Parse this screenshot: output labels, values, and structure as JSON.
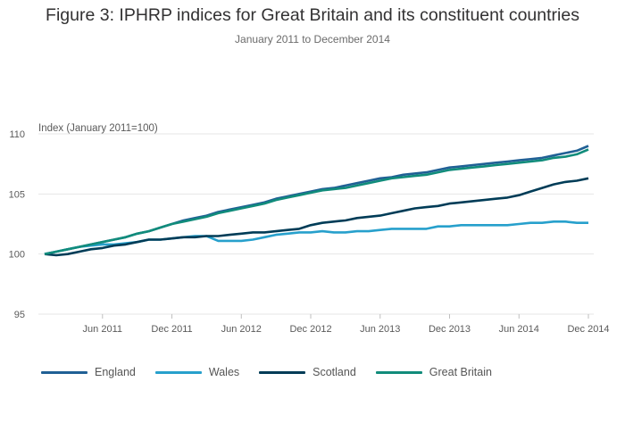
{
  "header": {
    "title": "Figure 3: IPHRP indices for Great Britain and its constituent countries",
    "subtitle": "January 2011 to December 2014"
  },
  "chart_data": {
    "type": "line",
    "title": "Figure 3: IPHRP indices for Great Britain and its constituent countries",
    "subtitle": "January 2011 to December 2014",
    "ylabel": "Index (January 2011=100)",
    "xlabel": "",
    "ylim": [
      95,
      110
    ],
    "yticks": [
      95,
      100,
      105,
      110
    ],
    "xticks": [
      {
        "label": "Jun 2011",
        "index": 5
      },
      {
        "label": "Dec 2011",
        "index": 11
      },
      {
        "label": "Jun 2012",
        "index": 17
      },
      {
        "label": "Dec 2012",
        "index": 23
      },
      {
        "label": "Jun 2013",
        "index": 29
      },
      {
        "label": "Dec 2013",
        "index": 35
      },
      {
        "label": "Jun 2014",
        "index": 41
      },
      {
        "label": "Dec 2014",
        "index": 47
      }
    ],
    "x": [
      "Jan 2011",
      "Feb 2011",
      "Mar 2011",
      "Apr 2011",
      "May 2011",
      "Jun 2011",
      "Jul 2011",
      "Aug 2011",
      "Sep 2011",
      "Oct 2011",
      "Nov 2011",
      "Dec 2011",
      "Jan 2012",
      "Feb 2012",
      "Mar 2012",
      "Apr 2012",
      "May 2012",
      "Jun 2012",
      "Jul 2012",
      "Aug 2012",
      "Sep 2012",
      "Oct 2012",
      "Nov 2012",
      "Dec 2012",
      "Jan 2013",
      "Feb 2013",
      "Mar 2013",
      "Apr 2013",
      "May 2013",
      "Jun 2013",
      "Jul 2013",
      "Aug 2013",
      "Sep 2013",
      "Oct 2013",
      "Nov 2013",
      "Dec 2013",
      "Jan 2014",
      "Feb 2014",
      "Mar 2014",
      "Apr 2014",
      "May 2014",
      "Jun 2014",
      "Jul 2014",
      "Aug 2014",
      "Sep 2014",
      "Oct 2014",
      "Nov 2014",
      "Dec 2014"
    ],
    "grid": true,
    "legend_position": "bottom-left",
    "series": [
      {
        "name": "England",
        "color": "#206095",
        "values": [
          100.0,
          100.2,
          100.4,
          100.6,
          100.8,
          101.0,
          101.2,
          101.4,
          101.7,
          101.9,
          102.2,
          102.5,
          102.8,
          103.0,
          103.2,
          103.5,
          103.7,
          103.9,
          104.1,
          104.3,
          104.6,
          104.8,
          105.0,
          105.2,
          105.4,
          105.5,
          105.7,
          105.9,
          106.1,
          106.3,
          106.4,
          106.6,
          106.7,
          106.8,
          107.0,
          107.2,
          107.3,
          107.4,
          107.5,
          107.6,
          107.7,
          107.8,
          107.9,
          108.0,
          108.2,
          108.4,
          108.6,
          109.0
        ]
      },
      {
        "name": "Wales",
        "color": "#27a0cc",
        "values": [
          100.0,
          100.2,
          100.4,
          100.6,
          100.7,
          100.8,
          100.8,
          100.9,
          101.0,
          101.2,
          101.2,
          101.3,
          101.4,
          101.5,
          101.5,
          101.1,
          101.1,
          101.1,
          101.2,
          101.4,
          101.6,
          101.7,
          101.8,
          101.8,
          101.9,
          101.8,
          101.8,
          101.9,
          101.9,
          102.0,
          102.1,
          102.1,
          102.1,
          102.1,
          102.3,
          102.3,
          102.4,
          102.4,
          102.4,
          102.4,
          102.4,
          102.5,
          102.6,
          102.6,
          102.7,
          102.7,
          102.6,
          102.6
        ]
      },
      {
        "name": "Scotland",
        "color": "#003c57",
        "values": [
          100.0,
          99.9,
          100.0,
          100.2,
          100.4,
          100.5,
          100.7,
          100.8,
          101.0,
          101.2,
          101.2,
          101.3,
          101.4,
          101.4,
          101.5,
          101.5,
          101.6,
          101.7,
          101.8,
          101.8,
          101.9,
          102.0,
          102.1,
          102.4,
          102.6,
          102.7,
          102.8,
          103.0,
          103.1,
          103.2,
          103.4,
          103.6,
          103.8,
          103.9,
          104.0,
          104.2,
          104.3,
          104.4,
          104.5,
          104.6,
          104.7,
          104.9,
          105.2,
          105.5,
          105.8,
          106.0,
          106.1,
          106.3
        ]
      },
      {
        "name": "Great Britain",
        "color": "#118c7b",
        "values": [
          100.0,
          100.2,
          100.4,
          100.6,
          100.8,
          101.0,
          101.2,
          101.4,
          101.7,
          101.9,
          102.2,
          102.5,
          102.7,
          102.9,
          103.1,
          103.4,
          103.6,
          103.8,
          104.0,
          104.2,
          104.5,
          104.7,
          104.9,
          105.1,
          105.3,
          105.4,
          105.5,
          105.7,
          105.9,
          106.1,
          106.3,
          106.4,
          106.5,
          106.6,
          106.8,
          107.0,
          107.1,
          107.2,
          107.3,
          107.4,
          107.5,
          107.6,
          107.7,
          107.8,
          108.0,
          108.1,
          108.3,
          108.7
        ]
      }
    ]
  }
}
